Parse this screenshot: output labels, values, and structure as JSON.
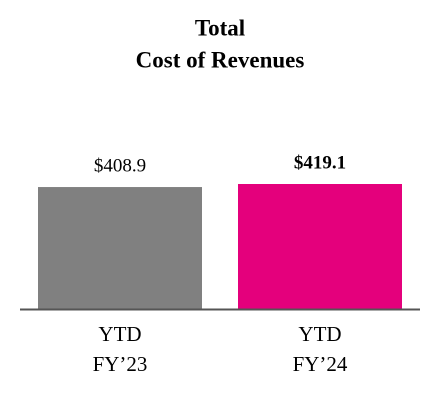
{
  "chart_data": {
    "type": "bar",
    "title": [
      "Total",
      "Cost of Revenues"
    ],
    "categories": [
      [
        "YTD",
        "FY’23"
      ],
      [
        "YTD",
        "FY’24"
      ]
    ],
    "values": [
      408.9,
      419.1
    ],
    "value_labels": [
      "$408.9",
      "$419.1"
    ],
    "value_label_bold": [
      false,
      true
    ],
    "colors": [
      "#808080",
      "#e4007c"
    ]
  }
}
